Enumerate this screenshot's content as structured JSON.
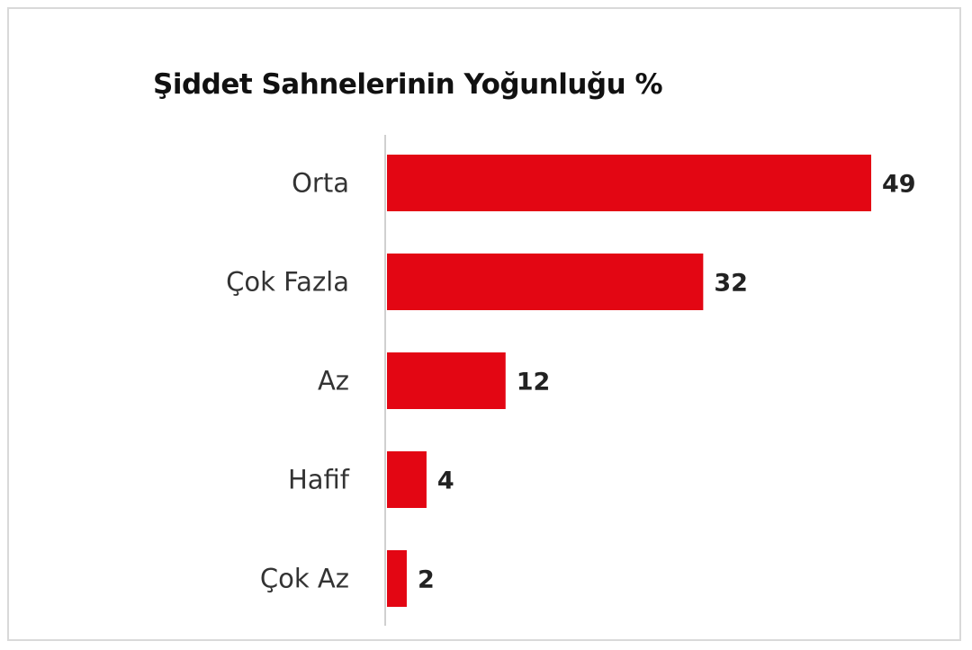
{
  "chart_data": {
    "type": "bar",
    "orientation": "horizontal",
    "title": "Şiddet Sahnelerinin Yoğunluğu %",
    "categories": [
      "Orta",
      "Çok Fazla",
      "Az",
      "Hafif",
      "Çok Az"
    ],
    "values": [
      49,
      32,
      12,
      4,
      2
    ],
    "data_labels": [
      "49",
      "32",
      "12",
      "4",
      "2"
    ],
    "xlabel": "",
    "ylabel": "",
    "xlim": [
      0,
      49
    ],
    "grid": false,
    "legend": "none",
    "bar_color": "#e30613"
  }
}
